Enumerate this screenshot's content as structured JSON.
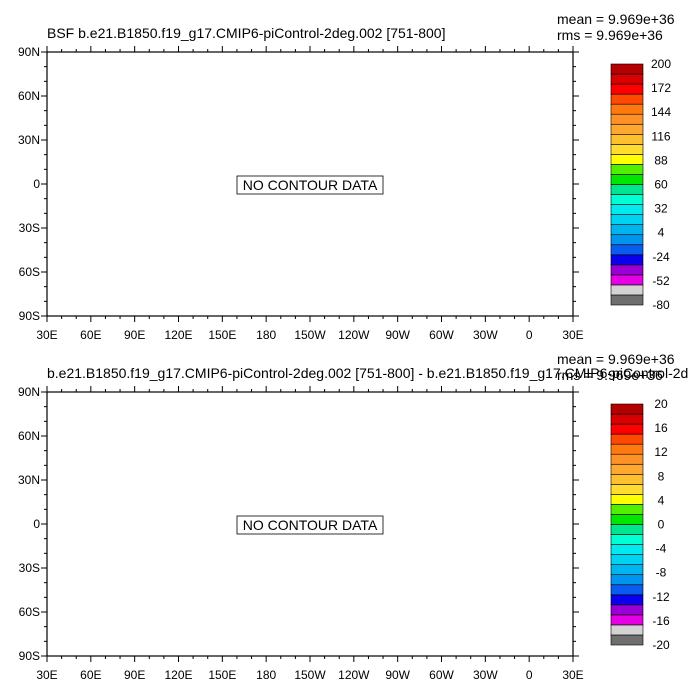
{
  "chart_data": [
    {
      "type": "heatmap",
      "title": "BSF b.e21.B1850.f19_g17.CMIP6-piControl-2deg.002 [751-800]",
      "stats": {
        "mean": "mean = 9.969e+36",
        "rms": "rms = 9.969e+36"
      },
      "no_data_label": "NO CONTOUR DATA",
      "x_tick_labels": [
        "30E",
        "60E",
        "90E",
        "120E",
        "150E",
        "180",
        "150W",
        "120W",
        "90W",
        "60W",
        "30W",
        "0",
        "30E"
      ],
      "y_tick_labels": [
        "90N",
        "60N",
        "30N",
        "0",
        "30S",
        "60S",
        "90S"
      ],
      "colorbar": {
        "colors": [
          "#6e6e6e",
          "#d3d3d3",
          "#e600e6",
          "#9a00d3",
          "#0a00ee",
          "#0a5cf0",
          "#0094ee",
          "#00b4f0",
          "#00d2f2",
          "#00eaf0",
          "#00ffd2",
          "#00e690",
          "#00e600",
          "#52f000",
          "#ffff00",
          "#ffdc2e",
          "#ffc030",
          "#ffa830",
          "#ff9226",
          "#ff7a0e",
          "#ff4800",
          "#ff0000",
          "#d80000",
          "#b40000"
        ],
        "labels": [
          "200",
          "172",
          "144",
          "116",
          "88",
          "60",
          "32",
          "4",
          "-24",
          "-52",
          "-80"
        ]
      }
    },
    {
      "type": "heatmap",
      "title": "b.e21.B1850.f19_g17.CMIP6-piControl-2deg.002 [751-800] - b.e21.B1850.f19_g17.CMIP6-piControl-2d",
      "stats": {
        "mean": "mean = 9.969e+36",
        "rms": "rms = 9.969e+36"
      },
      "no_data_label": "NO CONTOUR DATA",
      "x_tick_labels": [
        "30E",
        "60E",
        "90E",
        "120E",
        "150E",
        "180",
        "150W",
        "120W",
        "90W",
        "60W",
        "30W",
        "0",
        "30E"
      ],
      "y_tick_labels": [
        "90N",
        "60N",
        "30N",
        "0",
        "30S",
        "60S",
        "90S"
      ],
      "colorbar": {
        "colors": [
          "#6e6e6e",
          "#d3d3d3",
          "#e600e6",
          "#9a00d3",
          "#0a00ee",
          "#0a5cf0",
          "#0094ee",
          "#00b4f0",
          "#00d2f2",
          "#00eaf0",
          "#00ffd2",
          "#00e690",
          "#00e600",
          "#52f000",
          "#ffff00",
          "#ffdc2e",
          "#ffc030",
          "#ffa830",
          "#ff9226",
          "#ff7a0e",
          "#ff4800",
          "#ff0000",
          "#d80000",
          "#b40000"
        ],
        "labels": [
          "20",
          "16",
          "12",
          "8",
          "4",
          "0",
          "-4",
          "-8",
          "-12",
          "-16",
          "-20"
        ]
      }
    }
  ]
}
